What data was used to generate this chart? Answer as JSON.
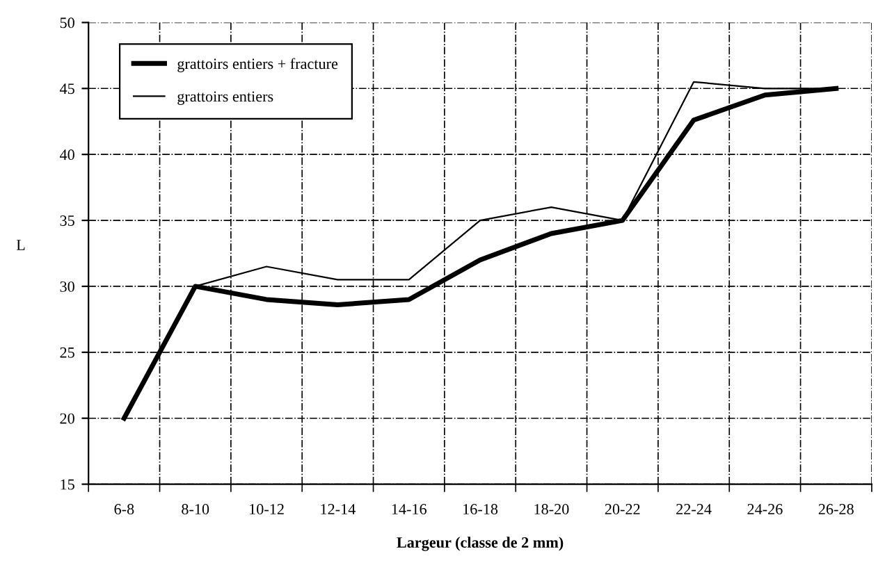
{
  "chart_data": {
    "type": "line",
    "xlabel": "Largeur (classe de 2 mm)",
    "ylabel": "L",
    "categories": [
      "6-8",
      "8-10",
      "10-12",
      "12-14",
      "14-16",
      "16-18",
      "18-20",
      "20-22",
      "22-24",
      "24-26",
      "26-28"
    ],
    "series": [
      {
        "name": "grattoirs entiers + fracture",
        "color": "#000000",
        "values": [
          20,
          30,
          29,
          28.6,
          29,
          32,
          34,
          35,
          42.6,
          44.5,
          45
        ]
      },
      {
        "name": "grattoirs entiers",
        "color": "#000000",
        "values": [
          null,
          30,
          31.5,
          30.5,
          30.5,
          35,
          36,
          35,
          45.5,
          45,
          45
        ]
      }
    ],
    "ylim": [
      15,
      50
    ],
    "yticks": [
      15,
      20,
      25,
      30,
      35,
      40,
      45,
      50
    ],
    "grid": true,
    "legend": "top left",
    "marker": "none",
    "line_style": "solid"
  }
}
